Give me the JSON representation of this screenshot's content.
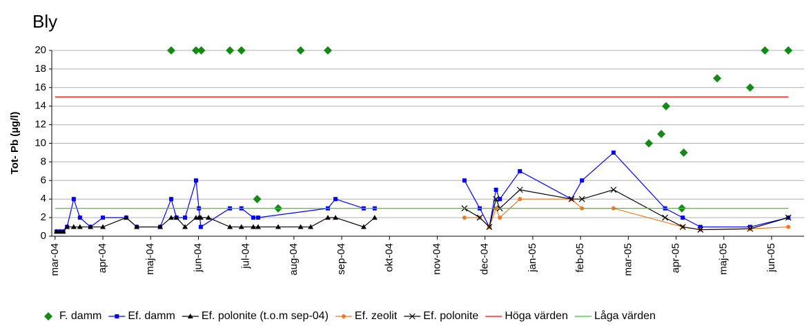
{
  "chart_data": {
    "type": "line",
    "title": "Bly",
    "y_label": "Tot- Pb (µg/l)",
    "xlim": [
      -0.07,
      15.68
    ],
    "ylim": [
      0,
      20
    ],
    "yticks": [
      0,
      2,
      4,
      6,
      8,
      10,
      12,
      14,
      16,
      18,
      20
    ],
    "grid": true,
    "xticks": [
      {
        "value": 0,
        "label": "mar-04"
      },
      {
        "value": 1,
        "label": "apr-04"
      },
      {
        "value": 2,
        "label": "maj-04"
      },
      {
        "value": 3,
        "label": "jun-04"
      },
      {
        "value": 4,
        "label": "jul-04"
      },
      {
        "value": 5,
        "label": "aug-04"
      },
      {
        "value": 6,
        "label": "sep-04"
      },
      {
        "value": 7,
        "label": "okt-04"
      },
      {
        "value": 8,
        "label": "nov-04"
      },
      {
        "value": 9,
        "label": "dec-04"
      },
      {
        "value": 10,
        "label": "jan-05"
      },
      {
        "value": 11,
        "label": "feb-05"
      },
      {
        "value": 12,
        "label": "mar-05"
      },
      {
        "value": 13,
        "label": "apr-05"
      },
      {
        "value": 14,
        "label": "maj-05"
      },
      {
        "value": 15,
        "label": "jun-05"
      }
    ],
    "legend": "bottom",
    "series": [
      {
        "name": "F. damm",
        "color": "#138a13",
        "marker": "diamond",
        "line": false,
        "x": [
          2.43,
          2.95,
          3.06,
          3.66,
          3.9,
          4.23,
          4.67,
          5.14,
          5.71,
          12.43,
          12.69,
          12.79,
          13.12,
          13.16,
          13.86,
          14.55,
          14.86,
          15.35
        ],
        "values": [
          20,
          20,
          20,
          20,
          20,
          4,
          3,
          20,
          20,
          10,
          11,
          14,
          3,
          9,
          17,
          16,
          20,
          20
        ]
      },
      {
        "name": "Ef. damm",
        "color": "#0000ff",
        "marker": "square",
        "line": true,
        "x": [
          0.03,
          0.1,
          0.17,
          0.25,
          0.39,
          0.52,
          0.74,
          1.0,
          1.49,
          1.71,
          2.2,
          2.43,
          2.54,
          2.72,
          2.95,
          3.01,
          3.05,
          3.66,
          3.9,
          4.15,
          4.25,
          5.71,
          5.87,
          6.46,
          6.69,
          null,
          8.57,
          8.89,
          9.09,
          9.23,
          9.31,
          9.73,
          10.81,
          11.03,
          11.69,
          12.77,
          13.14,
          13.51,
          14.55,
          15.35
        ],
        "values": [
          0.5,
          0.5,
          0.5,
          1,
          4,
          2,
          1,
          2,
          2,
          1,
          1,
          4,
          2,
          2,
          6,
          3,
          1,
          3,
          3,
          2,
          2,
          3,
          4,
          3,
          3,
          null,
          6,
          3,
          1,
          5,
          4,
          7,
          4,
          6,
          9,
          3,
          2,
          1,
          1,
          2
        ]
      },
      {
        "name": "Ef. polonite (t.o.m sep-04)",
        "color": "#000000",
        "marker": "triangle",
        "line": true,
        "x": [
          0.03,
          0.1,
          0.17,
          0.25,
          0.39,
          0.52,
          0.74,
          1.0,
          1.49,
          1.71,
          2.2,
          2.43,
          2.54,
          2.72,
          2.95,
          3.01,
          3.05,
          3.21,
          3.66,
          3.9,
          4.15,
          4.25,
          4.67,
          5.14,
          5.35,
          5.71,
          5.87,
          6.46,
          6.69
        ],
        "values": [
          0.5,
          0.5,
          0.5,
          1,
          1,
          1,
          1,
          1,
          2,
          1,
          1,
          2,
          2,
          1,
          2,
          2,
          2,
          2,
          1,
          1,
          1,
          1,
          1,
          1,
          1,
          2,
          2,
          1,
          2
        ]
      },
      {
        "name": "Ef. zeolit",
        "color": "#f07820",
        "marker": "circle",
        "line": true,
        "x": [
          8.57,
          8.89,
          9.09,
          9.23,
          9.31,
          9.73,
          10.81,
          11.03,
          11.69,
          13.14,
          13.51,
          14.55,
          15.35
        ],
        "values": [
          2,
          2,
          1,
          3,
          2,
          4,
          4,
          3,
          3,
          1,
          0.7,
          0.8,
          1
        ]
      },
      {
        "name": "Ef. polonite",
        "color": "#000000",
        "marker": "x",
        "line": true,
        "x": [
          8.57,
          8.89,
          9.09,
          9.23,
          9.31,
          9.73,
          10.81,
          11.03,
          11.69,
          12.77,
          13.14,
          13.51,
          14.55,
          15.35
        ],
        "values": [
          3,
          2,
          1,
          4,
          3,
          5,
          4,
          4,
          5,
          2,
          1,
          0.7,
          0.8,
          2
        ]
      },
      {
        "name": "Höga värden",
        "color": "#ff0000",
        "marker": "none",
        "line": true,
        "x": [
          0,
          15.35
        ],
        "values": [
          15,
          15
        ]
      },
      {
        "name": "Låga värden",
        "color": "#33cc33",
        "marker": "none",
        "line": true,
        "x": [
          0,
          15.35
        ],
        "values": [
          3,
          3
        ]
      }
    ]
  }
}
